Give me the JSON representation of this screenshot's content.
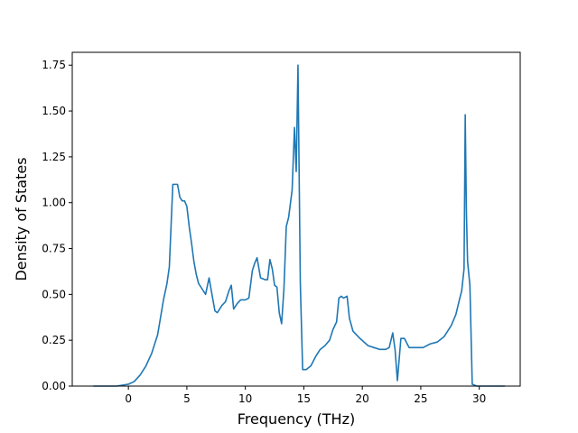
{
  "chart_data": {
    "type": "line",
    "title": "",
    "xlabel": "Frequency (THz)",
    "ylabel": "Density of States",
    "xlim": [
      -4.8,
      33.5
    ],
    "ylim": [
      0,
      1.82
    ],
    "x_ticks": [
      0,
      5,
      10,
      15,
      20,
      25,
      30
    ],
    "y_ticks": [
      0.0,
      0.25,
      0.5,
      0.75,
      1.0,
      1.25,
      1.5,
      1.75
    ],
    "x_tick_labels": [
      "0",
      "5",
      "10",
      "15",
      "20",
      "25",
      "30"
    ],
    "y_tick_labels": [
      "0.00",
      "0.25",
      "0.50",
      "0.75",
      "1.00",
      "1.25",
      "1.50",
      "1.75"
    ],
    "grid": false,
    "legend": "none",
    "line_color": "#1f77b4",
    "series": [
      {
        "x": [
          -3,
          -1,
          0,
          0.5,
          1,
          1.5,
          2,
          2.5,
          3,
          3.3,
          3.5,
          3.6,
          3.8,
          4.2,
          4.4,
          4.6,
          4.8,
          5.0,
          5.2,
          5.4,
          5.6,
          5.8,
          6.0,
          6.3,
          6.6,
          6.9,
          7.2,
          7.4,
          7.6,
          7.8,
          8.0,
          8.3,
          8.6,
          8.8,
          9.0,
          9.3,
          9.6,
          10.0,
          10.3,
          10.6,
          10.8,
          11.0,
          11.3,
          11.7,
          11.9,
          12.1,
          12.3,
          12.5,
          12.7,
          12.9,
          13.1,
          13.3,
          13.5,
          13.7,
          14.0,
          14.2,
          14.35,
          14.5,
          14.7,
          14.9,
          15.2,
          15.6,
          16.0,
          16.4,
          16.8,
          17.2,
          17.5,
          17.8,
          18.0,
          18.2,
          18.4,
          18.7,
          18.9,
          19.2,
          19.8,
          20.5,
          21.0,
          21.5,
          22.0,
          22.3,
          22.6,
          22.8,
          23.0,
          23.3,
          23.6,
          24.0,
          24.6,
          25.2,
          25.8,
          26.4,
          27.0,
          27.6,
          28.0,
          28.3,
          28.5,
          28.7,
          28.8,
          28.9,
          29.0,
          29.2,
          29.4,
          29.8,
          30.5,
          31.5,
          32.2
        ],
        "y": [
          0,
          0,
          0.01,
          0.025,
          0.06,
          0.11,
          0.18,
          0.28,
          0.47,
          0.56,
          0.65,
          0.8,
          1.1,
          1.1,
          1.03,
          1.01,
          1.01,
          0.98,
          0.87,
          0.78,
          0.68,
          0.61,
          0.56,
          0.53,
          0.5,
          0.59,
          0.48,
          0.41,
          0.4,
          0.42,
          0.44,
          0.46,
          0.52,
          0.55,
          0.42,
          0.45,
          0.47,
          0.47,
          0.48,
          0.63,
          0.67,
          0.7,
          0.59,
          0.58,
          0.58,
          0.69,
          0.64,
          0.55,
          0.54,
          0.4,
          0.34,
          0.53,
          0.87,
          0.92,
          1.07,
          1.41,
          1.17,
          1.75,
          0.56,
          0.09,
          0.09,
          0.11,
          0.16,
          0.2,
          0.22,
          0.25,
          0.31,
          0.35,
          0.48,
          0.49,
          0.48,
          0.49,
          0.37,
          0.3,
          0.26,
          0.22,
          0.21,
          0.2,
          0.2,
          0.21,
          0.29,
          0.2,
          0.03,
          0.26,
          0.26,
          0.21,
          0.21,
          0.21,
          0.23,
          0.24,
          0.27,
          0.33,
          0.39,
          0.47,
          0.52,
          0.64,
          1.48,
          0.95,
          0.68,
          0.55,
          0.01,
          0,
          0,
          0,
          0
        ]
      }
    ]
  }
}
